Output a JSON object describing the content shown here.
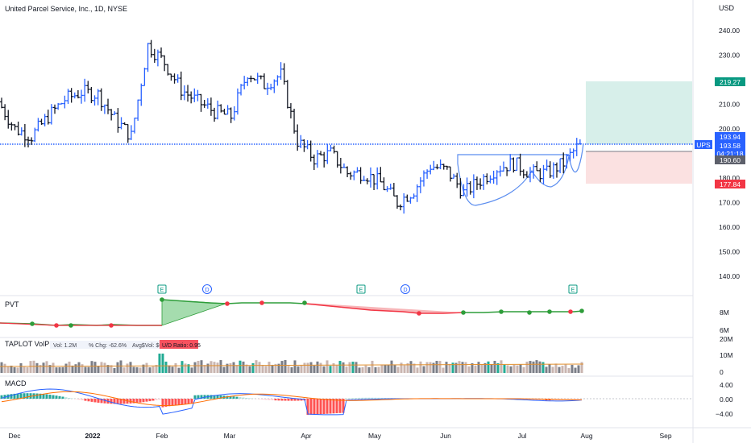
{
  "header": {
    "symbol_title": "United Parcel Service, Inc., 1D, NYSE",
    "currency": "USD"
  },
  "price_axis": {
    "ticks": [
      "240.00",
      "230.00",
      "220.00",
      "210.00",
      "200.00",
      "190.00",
      "180.00",
      "170.00",
      "160.00",
      "150.00",
      "140.00"
    ]
  },
  "price_labels": {
    "target": "219.27",
    "last": "193.94",
    "last2": "193.58",
    "countdown": "04:21:18",
    "entry": "190.60",
    "stop": "177.84",
    "ticker_tag": "UPS"
  },
  "events": [
    {
      "label": "E",
      "date": "Feb 1"
    },
    {
      "label": "D",
      "date": "Feb 18"
    },
    {
      "label": "E",
      "date": "Apr 26"
    },
    {
      "label": "D",
      "date": "May 13"
    },
    {
      "label": "E",
      "date": "Jul 26"
    }
  ],
  "pvt": {
    "title": "PVT",
    "ticks": [
      "8M",
      "6M"
    ]
  },
  "volume": {
    "title": "TAPLOT VolPPs",
    "stats": [
      "Vol: 1.2M",
      "% Chg: -62.6%",
      "Avg$Vol: $621.37M"
    ],
    "ud_ratio": "U/D Ratio: 0.95",
    "ticks": [
      "20M",
      "10M",
      "0"
    ]
  },
  "macd": {
    "title": "MACD",
    "ticks": [
      "4.00",
      "0.00",
      "−4.00"
    ]
  },
  "time_axis": {
    "labels": [
      "Dec",
      "2022",
      "Feb",
      "Mar",
      "Apr",
      "May",
      "Jun",
      "Jul",
      "Aug",
      "Sep"
    ]
  },
  "colors": {
    "up_bar": "#2962ff",
    "down_bar": "#131722",
    "support_line": "#2962ff",
    "target_zone": "#d7efea",
    "stop_zone": "#fbe1e1",
    "target_label": "#089981",
    "stop_label": "#f23645",
    "pvt_line": "#2e9d3a",
    "pvt_down": "#f23645"
  },
  "chart_data": {
    "type": "ohlc",
    "title": "United Parcel Service, Inc., 1D, NYSE",
    "ylim": [
      135,
      245
    ],
    "support_level": 193.94,
    "position": {
      "entry": 190.6,
      "target": 219.27,
      "stop": 177.84
    },
    "series": [
      {
        "name": "UPS",
        "x": [
          "Nov 29",
          "Dec 6",
          "Dec 13",
          "Dec 20",
          "Dec 27",
          "Jan 3",
          "Jan 10",
          "Jan 18",
          "Jan 24",
          "Jan 31",
          "Feb 7",
          "Feb 14",
          "Feb 22",
          "Feb 28",
          "Mar 7",
          "Mar 14",
          "Mar 21",
          "Mar 28",
          "Apr 4",
          "Apr 11",
          "Apr 18",
          "Apr 25",
          "May 2",
          "May 9",
          "May 16",
          "May 23",
          "May 31",
          "Jun 6",
          "Jun 13",
          "Jun 21",
          "Jun 27",
          "Jul 5",
          "Jul 11",
          "Jul 18",
          "Jul 25",
          "Jul 29"
        ],
        "close": [
          211,
          200,
          197,
          205,
          212,
          215,
          214,
          204,
          197,
          234,
          227,
          216,
          211,
          207,
          205,
          223,
          218,
          222,
          195,
          188,
          190,
          182,
          182,
          178,
          170,
          175,
          185,
          183,
          174,
          179,
          184,
          186,
          182,
          182,
          186,
          193.94
        ]
      }
    ]
  }
}
